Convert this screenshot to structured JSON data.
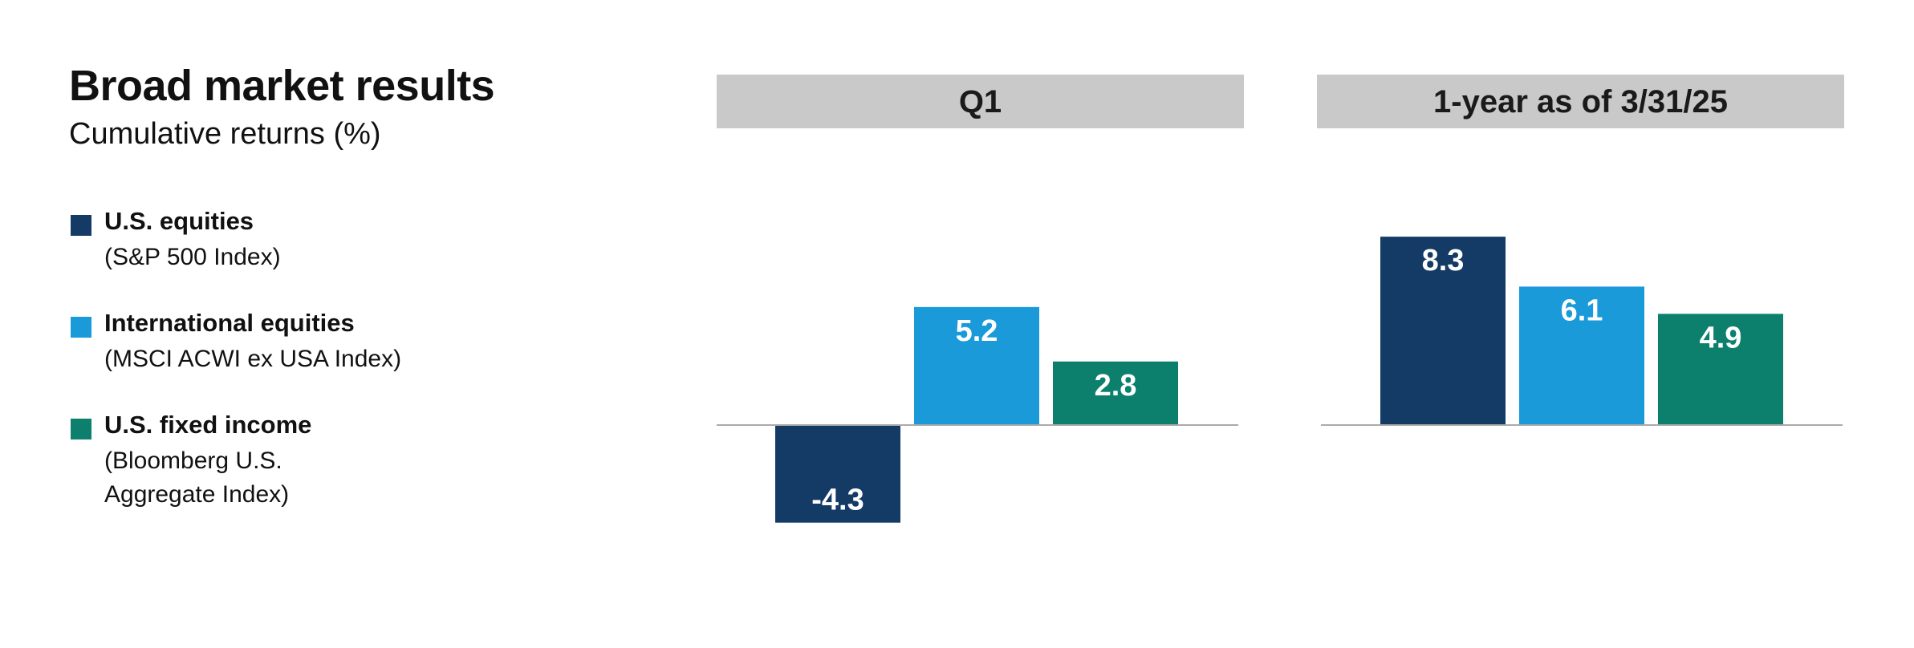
{
  "title": "Broad market results",
  "subtitle": "Cumulative returns (%)",
  "legend": [
    {
      "name": "U.S. equities",
      "sub": "(S&P 500 Index)",
      "color": "#133b66"
    },
    {
      "name": "International equities",
      "sub": "(MSCI ACWI ex USA Index)",
      "color": "#1a9ad9"
    },
    {
      "name": "U.S. fixed income",
      "sub": "(Bloomberg U.S.\nAggregate Index)",
      "color": "#0c806d"
    }
  ],
  "chart_data": {
    "type": "bar",
    "grid": false,
    "legend_position": "left",
    "panels": [
      {
        "title": "Q1",
        "categories": [
          "U.S. equities",
          "International equities",
          "U.S. fixed income"
        ],
        "values": [
          -4.3,
          5.2,
          2.8
        ],
        "labels": [
          "-4.3",
          "5.2",
          "2.8"
        ]
      },
      {
        "title": "1-year as of 3/31/25",
        "categories": [
          "U.S. equities",
          "International equities",
          "U.S. fixed income"
        ],
        "values": [
          8.3,
          6.1,
          4.9
        ],
        "labels": [
          "8.3",
          "6.1",
          "4.9"
        ]
      }
    ],
    "header_color": "#c9c9c9",
    "axis_color": "#aaaaaa"
  }
}
